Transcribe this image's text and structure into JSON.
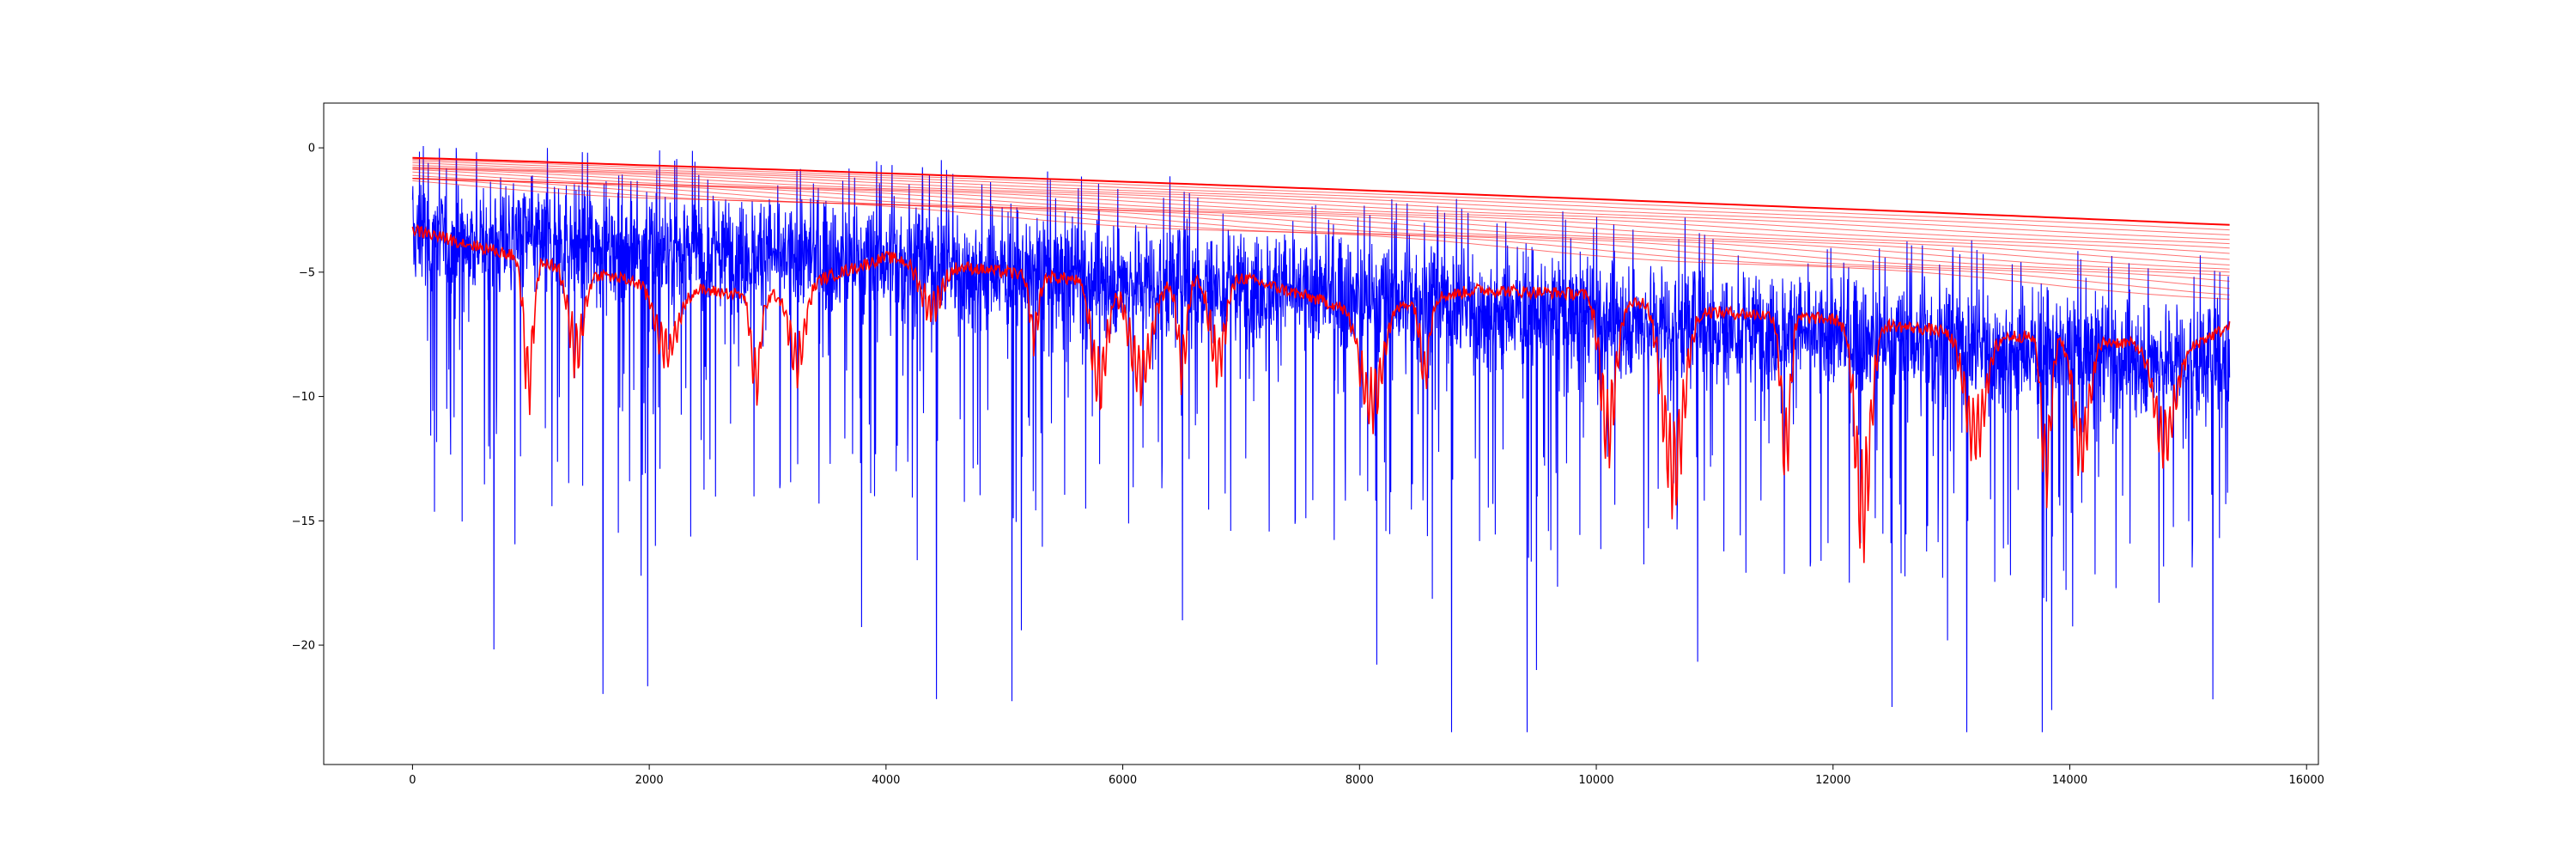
{
  "chart_data": {
    "type": "line",
    "title": "",
    "xlabel": "",
    "ylabel": "",
    "xlim": [
      -750,
      16100
    ],
    "ylim": [
      -24.8,
      1.8
    ],
    "grid": false,
    "legend": "none",
    "x_ticks": [
      0,
      2000,
      4000,
      6000,
      8000,
      10000,
      12000,
      14000,
      16000
    ],
    "x_tick_labels": [
      "0",
      "2000",
      "4000",
      "6000",
      "8000",
      "10000",
      "12000",
      "14000",
      "16000"
    ],
    "y_ticks": [
      0,
      -5,
      -10,
      -15,
      -20
    ],
    "y_tick_labels": [
      "0",
      "−5",
      "−10",
      "−15",
      "−20"
    ],
    "x_max": 15350,
    "colors": {
      "signal": "#0000ff",
      "envelope": "#ff0000",
      "frame": "#000000"
    },
    "series": [
      {
        "kind": "noisy-signal",
        "color": "#0000ff",
        "mean_trend": [
          [
            0,
            -3.6
          ],
          [
            4000,
            -4.6
          ],
          [
            8000,
            -6.0
          ],
          [
            12000,
            -7.6
          ],
          [
            15350,
            -8.7
          ]
        ],
        "peak_max": 0.5,
        "trough_min": -23.5
      },
      {
        "kind": "upper-envelope-bundle",
        "color": "#ff0000",
        "count": 16,
        "start_range": [
          -0.4,
          -1.4
        ],
        "end_range": [
          -3.1,
          -6.0
        ]
      },
      {
        "kind": "lower-envelope",
        "color": "#ff0000",
        "level_points": [
          [
            0,
            -3.3
          ],
          [
            1000,
            -4.5
          ],
          [
            2000,
            -5.5
          ],
          [
            3000,
            -6.0
          ],
          [
            4000,
            -4.4
          ],
          [
            5000,
            -5.0
          ],
          [
            6000,
            -5.5
          ],
          [
            7000,
            -5.2
          ],
          [
            8000,
            -6.6
          ],
          [
            9000,
            -5.7
          ],
          [
            10000,
            -5.9
          ],
          [
            11000,
            -6.6
          ],
          [
            12000,
            -6.9
          ],
          [
            13000,
            -7.4
          ],
          [
            14000,
            -7.7
          ],
          [
            15000,
            -8.0
          ],
          [
            15350,
            -7.2
          ]
        ],
        "dip_x": [
          980,
          1380,
          2150,
          2900,
          3250,
          4380,
          5250,
          5800,
          6150,
          6500,
          6800,
          8100,
          8550,
          10100,
          10650,
          11600,
          12250,
          13200,
          13800,
          14100,
          14800
        ],
        "dip_depth": [
          -11.0,
          -9.2,
          -9.0,
          -10.5,
          -9.6,
          -7.0,
          -8.2,
          -10.8,
          -10.3,
          -9.8,
          -9.6,
          -11.5,
          -9.8,
          -13.2,
          -15.0,
          -13.8,
          -16.9,
          -12.8,
          -14.5,
          -13.6,
          -13.0
        ]
      }
    ]
  }
}
